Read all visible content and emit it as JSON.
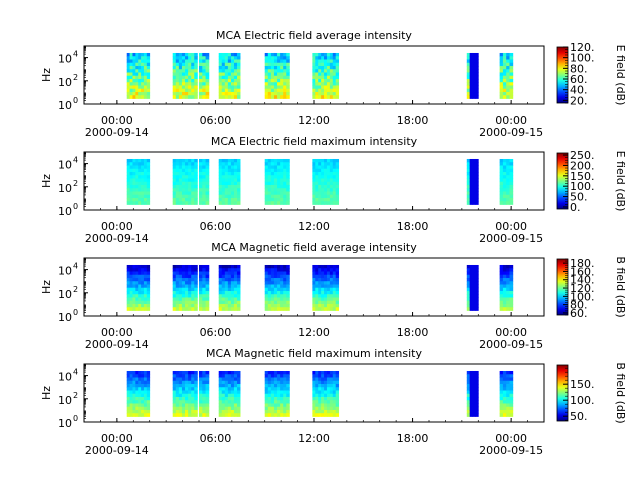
{
  "chart_data": [
    {
      "type": "heatmap",
      "title": "MCA  Electric field average intensity",
      "ylabel": "Hz",
      "yscale": "log",
      "ylim": [
        1,
        100000
      ],
      "y_ticks": [
        {
          "base": "10",
          "exp": "0"
        },
        {
          "base": "10",
          "exp": "2"
        },
        {
          "base": "10",
          "exp": "4"
        }
      ],
      "xlim": [
        "2000-09-13T22:00",
        "2000-09-15T02:00"
      ],
      "x_ticks": [
        "00:00",
        "06:00",
        "12:00",
        "18:00",
        "00:00"
      ],
      "x_tick_hours": [
        0,
        6,
        12,
        18,
        24
      ],
      "x_date_labels": [
        {
          "text": "2000-09-14",
          "hour": 0
        },
        {
          "text": "2000-09-15",
          "hour": 24
        }
      ],
      "colorbar": {
        "label": "E field (dB)",
        "range": [
          15,
          120
        ],
        "ticks": [
          "120.",
          "100.",
          "80.",
          "60.",
          "40.",
          "20."
        ],
        "tick_values": [
          120,
          100,
          80,
          60,
          40,
          20
        ]
      },
      "data_intervals_hours": [
        [
          0.6,
          2.0
        ],
        [
          3.4,
          4.9
        ],
        [
          5.0,
          5.6
        ],
        [
          6.2,
          7.5
        ],
        [
          9.0,
          10.5
        ],
        [
          11.9,
          13.5
        ],
        [
          21.3,
          22.0
        ],
        [
          23.3,
          24.1
        ]
      ],
      "freq_range_hz": [
        3,
        25000
      ],
      "profile": "avg_e"
    },
    {
      "type": "heatmap",
      "title": "MCA  Electric field maximum intensity",
      "ylabel": "Hz",
      "yscale": "log",
      "ylim": [
        1,
        100000
      ],
      "y_ticks": [
        {
          "base": "10",
          "exp": "0"
        },
        {
          "base": "10",
          "exp": "2"
        },
        {
          "base": "10",
          "exp": "4"
        }
      ],
      "xlim": [
        "2000-09-13T22:00",
        "2000-09-15T02:00"
      ],
      "x_ticks": [
        "00:00",
        "06:00",
        "12:00",
        "18:00",
        "00:00"
      ],
      "x_tick_hours": [
        0,
        6,
        12,
        18,
        24
      ],
      "x_date_labels": [
        {
          "text": "2000-09-14",
          "hour": 0
        },
        {
          "text": "2000-09-15",
          "hour": 24
        }
      ],
      "colorbar": {
        "label": "E field (dB)",
        "range": [
          -10,
          260
        ],
        "ticks": [
          "250.",
          "200.",
          "150.",
          "100.",
          "50.",
          "0."
        ],
        "tick_values": [
          250,
          200,
          150,
          100,
          50,
          0
        ]
      },
      "data_intervals_hours": [
        [
          0.6,
          2.0
        ],
        [
          3.4,
          4.9
        ],
        [
          5.0,
          5.6
        ],
        [
          6.2,
          7.5
        ],
        [
          9.0,
          10.5
        ],
        [
          11.9,
          13.5
        ],
        [
          21.3,
          22.0
        ],
        [
          23.3,
          24.1
        ]
      ],
      "freq_range_hz": [
        3,
        25000
      ],
      "profile": "max_e"
    },
    {
      "type": "heatmap",
      "title": "MCA  Magnetic field average intensity",
      "ylabel": "Hz",
      "yscale": "log",
      "ylim": [
        1,
        100000
      ],
      "y_ticks": [
        {
          "base": "10",
          "exp": "0"
        },
        {
          "base": "10",
          "exp": "2"
        },
        {
          "base": "10",
          "exp": "4"
        }
      ],
      "xlim": [
        "2000-09-13T22:00",
        "2000-09-15T02:00"
      ],
      "x_ticks": [
        "00:00",
        "06:00",
        "12:00",
        "18:00",
        "00:00"
      ],
      "x_tick_hours": [
        0,
        6,
        12,
        18,
        24
      ],
      "x_date_labels": [
        {
          "text": "2000-09-14",
          "hour": 0
        },
        {
          "text": "2000-09-15",
          "hour": 24
        }
      ],
      "colorbar": {
        "label": "B field (dB)",
        "range": [
          55,
          190
        ],
        "ticks": [
          "180.",
          "160.",
          "140.",
          "120.",
          "100.",
          "80.",
          "60."
        ],
        "tick_values": [
          180,
          160,
          140,
          120,
          100,
          80,
          60
        ]
      },
      "data_intervals_hours": [
        [
          0.6,
          2.0
        ],
        [
          3.4,
          4.9
        ],
        [
          5.0,
          5.6
        ],
        [
          6.2,
          7.5
        ],
        [
          9.0,
          10.5
        ],
        [
          11.9,
          13.5
        ],
        [
          21.3,
          22.0
        ],
        [
          23.3,
          24.1
        ]
      ],
      "freq_range_hz": [
        3,
        25000
      ],
      "profile": "avg_b"
    },
    {
      "type": "heatmap",
      "title": "MCA  Magnetic field maximum intensity",
      "ylabel": "Hz",
      "yscale": "log",
      "ylim": [
        1,
        100000
      ],
      "y_ticks": [
        {
          "base": "10",
          "exp": "0"
        },
        {
          "base": "10",
          "exp": "2"
        },
        {
          "base": "10",
          "exp": "4"
        }
      ],
      "xlim": [
        "2000-09-13T22:00",
        "2000-09-15T02:00"
      ],
      "x_ticks": [
        "00:00",
        "06:00",
        "12:00",
        "18:00",
        "00:00"
      ],
      "x_tick_hours": [
        0,
        6,
        12,
        18,
        24
      ],
      "x_date_labels": [
        {
          "text": "2000-09-14",
          "hour": 0
        },
        {
          "text": "2000-09-15",
          "hour": 24
        }
      ],
      "colorbar": {
        "label": "B field (dB)",
        "range": [
          35,
          210
        ],
        "ticks": [
          "150.",
          "100.",
          "50."
        ],
        "tick_values": [
          150,
          100,
          50
        ]
      },
      "data_intervals_hours": [
        [
          0.6,
          2.0
        ],
        [
          3.4,
          4.9
        ],
        [
          5.0,
          5.6
        ],
        [
          6.2,
          7.5
        ],
        [
          9.0,
          10.5
        ],
        [
          11.9,
          13.5
        ],
        [
          21.3,
          22.0
        ],
        [
          23.3,
          24.1
        ]
      ],
      "freq_range_hz": [
        3,
        25000
      ],
      "profile": "max_b"
    }
  ]
}
